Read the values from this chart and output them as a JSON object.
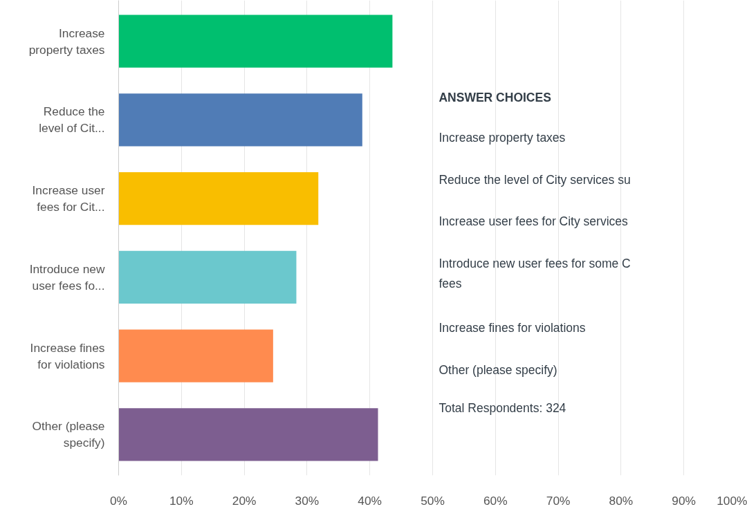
{
  "chart_data": {
    "type": "bar",
    "orientation": "horizontal",
    "categories": [
      "Increase\nproperty taxes",
      "Reduce the\nlevel of Cit...",
      "Increase user\nfees for Cit...",
      "Introduce new\nuser fees fo...",
      "Increase fines\nfor violations",
      "Other (please\nspecify)"
    ],
    "values": [
      43.6,
      38.8,
      31.8,
      28.3,
      24.6,
      41.3
    ],
    "colors": [
      "#00bf6f",
      "#507cb6",
      "#f9be00",
      "#6bc8cd",
      "#ff8b4f",
      "#7d5e90"
    ],
    "xlim": [
      0,
      100
    ],
    "xticks": [
      {
        "value": 0,
        "label": "0%"
      },
      {
        "value": 10,
        "label": "10%"
      },
      {
        "value": 20,
        "label": "20%"
      },
      {
        "value": 30,
        "label": "30%"
      },
      {
        "value": 40,
        "label": "40%"
      },
      {
        "value": 50,
        "label": "50%"
      },
      {
        "value": 60,
        "label": "60%"
      },
      {
        "value": 70,
        "label": "70%"
      },
      {
        "value": 80,
        "label": "80%"
      },
      {
        "value": 90,
        "label": "90%"
      },
      {
        "value": 100,
        "label": "100%"
      }
    ],
    "grid": "x",
    "annotations": [
      "ANSWER CHOICES",
      "Increase property taxes",
      "Reduce the level of City services su",
      "Increase user fees for City services",
      "Introduce new user fees for some C\nfees",
      "Increase fines for violations",
      "Other (please specify)",
      "Total Respondents: 324"
    ]
  }
}
